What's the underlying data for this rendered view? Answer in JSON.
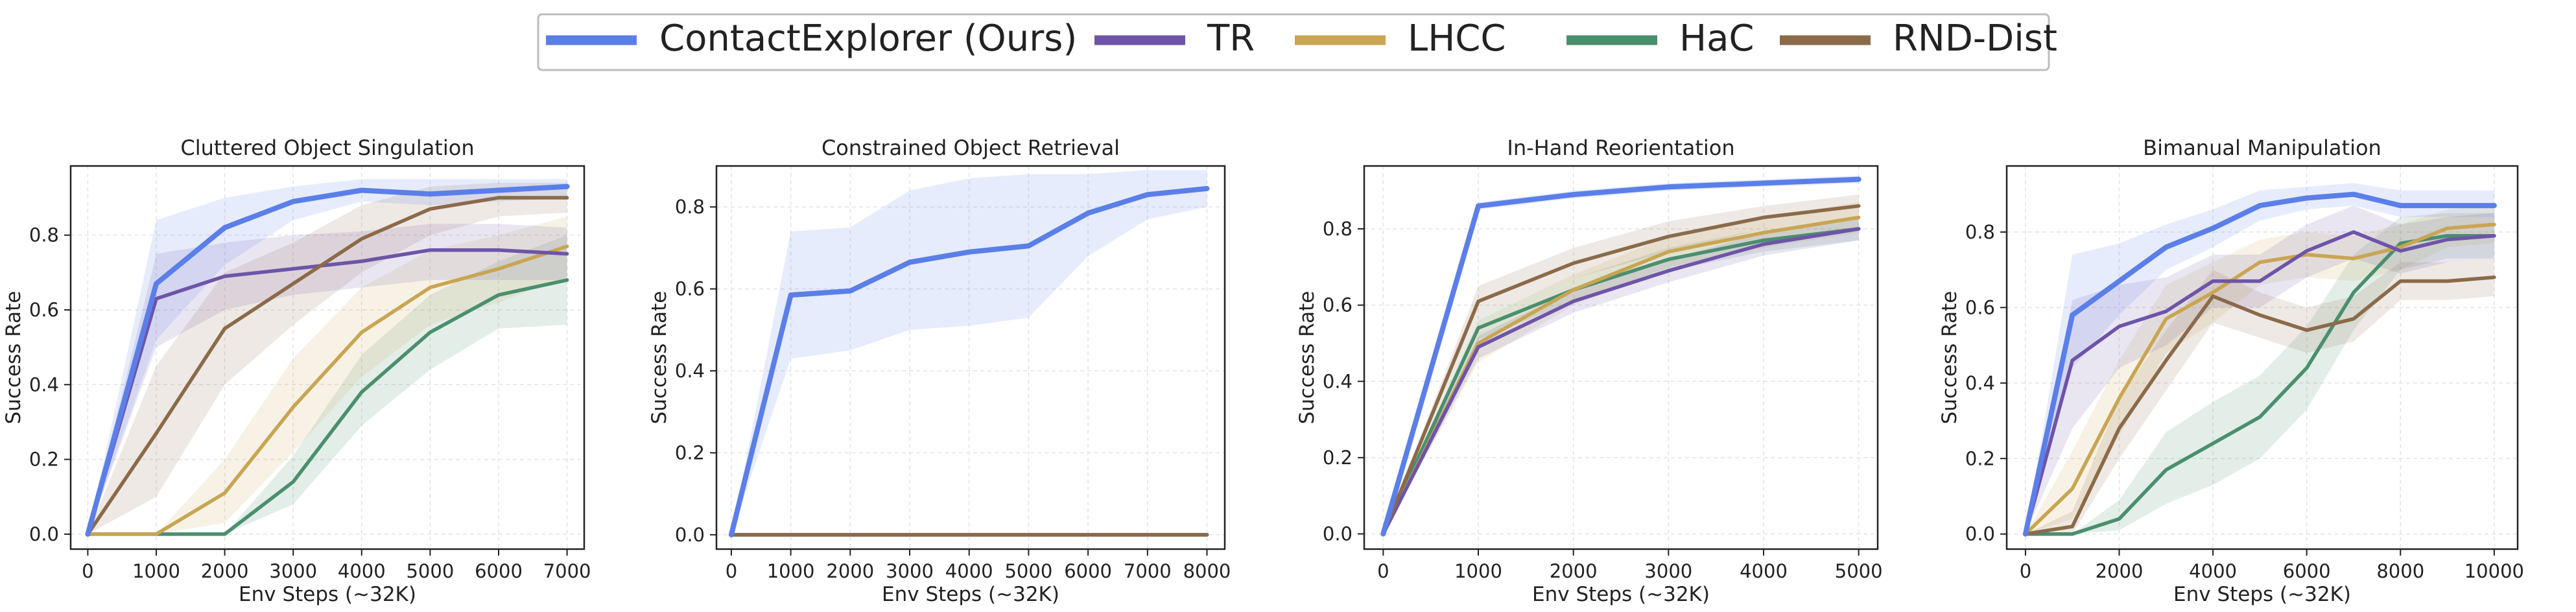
{
  "legend": {
    "items": [
      {
        "label": "ContactExplorer (Ours)",
        "color": "#5b7fe8"
      },
      {
        "label": "TR",
        "color": "#6e54a8"
      },
      {
        "label": "LHCC",
        "color": "#c9a552"
      },
      {
        "label": "HaC",
        "color": "#4a8f6e"
      },
      {
        "label": "RND-Dist",
        "color": "#8b6a4a"
      }
    ]
  },
  "chart_data": [
    {
      "type": "line",
      "title": "Cluttered Object Singulation",
      "xlabel": "Env Steps (~32K)",
      "ylabel": "Success Rate",
      "x": [
        0,
        1000,
        2000,
        3000,
        4000,
        5000,
        6000,
        7000
      ],
      "xlim": [
        -250,
        7250
      ],
      "ylim": [
        -0.04,
        0.985
      ],
      "xticks": [
        0,
        1000,
        2000,
        3000,
        4000,
        5000,
        6000,
        7000
      ],
      "yticks": [
        0.0,
        0.2,
        0.4,
        0.6,
        0.8
      ],
      "grid": true,
      "series": [
        {
          "name": "ContactExplorer (Ours)",
          "values": [
            0,
            0.67,
            0.82,
            0.89,
            0.92,
            0.91,
            0.92,
            0.93
          ],
          "lower": [
            0,
            0.52,
            0.72,
            0.84,
            0.89,
            0.88,
            0.89,
            0.9
          ],
          "upper": [
            0,
            0.84,
            0.9,
            0.93,
            0.95,
            0.95,
            0.95,
            0.95
          ]
        },
        {
          "name": "TR",
          "values": [
            0,
            0.63,
            0.69,
            0.71,
            0.73,
            0.76,
            0.76,
            0.75
          ],
          "lower": [
            0,
            0.5,
            0.6,
            0.64,
            0.66,
            0.68,
            0.68,
            0.68
          ],
          "upper": [
            0,
            0.75,
            0.78,
            0.8,
            0.81,
            0.83,
            0.83,
            0.82
          ]
        },
        {
          "name": "LHCC",
          "values": [
            0,
            0,
            0.11,
            0.34,
            0.54,
            0.66,
            0.71,
            0.77
          ],
          "lower": [
            0,
            0,
            0.03,
            0.22,
            0.42,
            0.56,
            0.62,
            0.69
          ],
          "upper": [
            0,
            0,
            0.2,
            0.47,
            0.66,
            0.76,
            0.8,
            0.85
          ]
        },
        {
          "name": "HaC",
          "values": [
            0,
            0,
            0,
            0.14,
            0.38,
            0.54,
            0.64,
            0.68
          ],
          "lower": [
            0,
            0,
            0,
            0.08,
            0.29,
            0.44,
            0.55,
            0.56
          ],
          "upper": [
            0,
            0,
            0,
            0.21,
            0.48,
            0.64,
            0.73,
            0.8
          ]
        },
        {
          "name": "RND-Dist",
          "values": [
            0,
            0.27,
            0.55,
            0.67,
            0.79,
            0.87,
            0.9,
            0.9
          ],
          "lower": [
            0,
            0.1,
            0.4,
            0.56,
            0.7,
            0.8,
            0.85,
            0.86
          ],
          "upper": [
            0,
            0.45,
            0.7,
            0.78,
            0.88,
            0.93,
            0.94,
            0.94
          ]
        }
      ]
    },
    {
      "type": "line",
      "title": "Constrained Object Retrieval",
      "xlabel": "Env Steps (~32K)",
      "ylabel": "Success Rate",
      "x": [
        0,
        1000,
        2000,
        3000,
        4000,
        5000,
        6000,
        7000,
        8000
      ],
      "xlim": [
        -250,
        8300
      ],
      "ylim": [
        -0.035,
        0.9
      ],
      "xticks": [
        0,
        1000,
        2000,
        3000,
        4000,
        5000,
        6000,
        7000,
        8000
      ],
      "yticks": [
        0.0,
        0.2,
        0.4,
        0.6,
        0.8
      ],
      "grid": true,
      "series": [
        {
          "name": "ContactExplorer (Ours)",
          "values": [
            0,
            0.585,
            0.595,
            0.665,
            0.69,
            0.705,
            0.785,
            0.83,
            0.845
          ],
          "lower": [
            0,
            0.43,
            0.45,
            0.5,
            0.51,
            0.53,
            0.68,
            0.77,
            0.8
          ],
          "upper": [
            0,
            0.74,
            0.75,
            0.84,
            0.87,
            0.88,
            0.88,
            0.89,
            0.89
          ]
        },
        {
          "name": "TR",
          "values": [
            0,
            0,
            0,
            0,
            0,
            0,
            0,
            0,
            0
          ]
        },
        {
          "name": "LHCC",
          "values": [
            0,
            0,
            0,
            0,
            0,
            0,
            0,
            0,
            0
          ]
        },
        {
          "name": "HaC",
          "values": [
            0,
            0,
            0,
            0,
            0,
            0,
            0,
            0,
            0
          ]
        },
        {
          "name": "RND-Dist",
          "values": [
            0,
            0,
            0,
            0,
            0,
            0,
            0,
            0,
            0
          ]
        }
      ]
    },
    {
      "type": "line",
      "title": "In-Hand Reorientation",
      "xlabel": "Env Steps (~32K)",
      "ylabel": "Success Rate",
      "x": [
        0,
        1000,
        2000,
        3000,
        4000,
        5000
      ],
      "xlim": [
        -200,
        5200
      ],
      "ylim": [
        -0.04,
        0.965
      ],
      "xticks": [
        0,
        1000,
        2000,
        3000,
        4000,
        5000
      ],
      "yticks": [
        0.0,
        0.2,
        0.4,
        0.6,
        0.8
      ],
      "grid": true,
      "series": [
        {
          "name": "ContactExplorer (Ours)",
          "values": [
            0,
            0.86,
            0.89,
            0.91,
            0.92,
            0.93
          ],
          "lower": [
            0,
            0.85,
            0.88,
            0.9,
            0.91,
            0.92
          ],
          "upper": [
            0,
            0.87,
            0.9,
            0.92,
            0.93,
            0.94
          ]
        },
        {
          "name": "TR",
          "values": [
            0,
            0.49,
            0.61,
            0.69,
            0.76,
            0.8
          ],
          "lower": [
            0,
            0.46,
            0.58,
            0.66,
            0.73,
            0.77
          ],
          "upper": [
            0,
            0.52,
            0.64,
            0.72,
            0.79,
            0.83
          ]
        },
        {
          "name": "LHCC",
          "values": [
            0,
            0.5,
            0.64,
            0.74,
            0.79,
            0.83
          ],
          "lower": [
            0,
            0.45,
            0.6,
            0.7,
            0.75,
            0.79
          ],
          "upper": [
            0,
            0.56,
            0.68,
            0.78,
            0.83,
            0.87
          ]
        },
        {
          "name": "HaC",
          "values": [
            0,
            0.54,
            0.64,
            0.72,
            0.77,
            0.8
          ],
          "lower": [
            0,
            0.51,
            0.61,
            0.69,
            0.74,
            0.77
          ],
          "upper": [
            0,
            0.57,
            0.67,
            0.75,
            0.8,
            0.83
          ]
        },
        {
          "name": "RND-Dist",
          "values": [
            0,
            0.61,
            0.71,
            0.78,
            0.83,
            0.86
          ],
          "lower": [
            0,
            0.57,
            0.67,
            0.74,
            0.8,
            0.83
          ],
          "upper": [
            0,
            0.65,
            0.75,
            0.82,
            0.86,
            0.89
          ]
        }
      ]
    },
    {
      "type": "line",
      "title": "Bimanual Manipulation",
      "xlabel": "Env Steps (~32K)",
      "ylabel": "Success Rate",
      "x": [
        0,
        1000,
        2000,
        3000,
        4000,
        5000,
        6000,
        7000,
        8000,
        9000,
        10000
      ],
      "xlim": [
        -400,
        10500
      ],
      "ylim": [
        -0.04,
        0.975
      ],
      "xticks": [
        0,
        2000,
        4000,
        6000,
        8000,
        10000
      ],
      "yticks": [
        0.0,
        0.2,
        0.4,
        0.6,
        0.8
      ],
      "grid": true,
      "series": [
        {
          "name": "ContactExplorer (Ours)",
          "values": [
            0,
            0.58,
            0.67,
            0.76,
            0.81,
            0.87,
            0.89,
            0.9,
            0.87,
            0.87,
            0.87
          ],
          "lower": [
            0,
            0.44,
            0.58,
            0.7,
            0.76,
            0.83,
            0.86,
            0.87,
            0.84,
            0.84,
            0.84
          ],
          "upper": [
            0,
            0.74,
            0.77,
            0.82,
            0.86,
            0.91,
            0.92,
            0.93,
            0.91,
            0.91,
            0.91
          ]
        },
        {
          "name": "TR",
          "values": [
            0,
            0.46,
            0.55,
            0.59,
            0.67,
            0.67,
            0.75,
            0.8,
            0.75,
            0.78,
            0.79
          ],
          "lower": [
            0,
            0.28,
            0.44,
            0.5,
            0.6,
            0.6,
            0.68,
            0.73,
            0.69,
            0.72,
            0.73
          ],
          "upper": [
            0,
            0.62,
            0.66,
            0.68,
            0.74,
            0.74,
            0.82,
            0.87,
            0.82,
            0.84,
            0.85
          ]
        },
        {
          "name": "LHCC",
          "values": [
            0,
            0.12,
            0.36,
            0.57,
            0.64,
            0.72,
            0.74,
            0.73,
            0.76,
            0.81,
            0.82
          ],
          "lower": [
            0,
            0.04,
            0.26,
            0.48,
            0.56,
            0.66,
            0.68,
            0.67,
            0.7,
            0.76,
            0.77
          ],
          "upper": [
            0,
            0.22,
            0.46,
            0.66,
            0.72,
            0.78,
            0.8,
            0.79,
            0.82,
            0.86,
            0.87
          ]
        },
        {
          "name": "HaC",
          "values": [
            0,
            0,
            0.04,
            0.17,
            0.24,
            0.31,
            0.44,
            0.64,
            0.77,
            0.79,
            0.79
          ],
          "lower": [
            0,
            0,
            0.01,
            0.08,
            0.13,
            0.2,
            0.33,
            0.54,
            0.7,
            0.73,
            0.73
          ],
          "upper": [
            0,
            0,
            0.09,
            0.27,
            0.35,
            0.42,
            0.55,
            0.74,
            0.84,
            0.85,
            0.85
          ]
        },
        {
          "name": "RND-Dist",
          "values": [
            0,
            0.02,
            0.28,
            0.46,
            0.63,
            0.58,
            0.54,
            0.57,
            0.67,
            0.67,
            0.68
          ],
          "lower": [
            0,
            0.0,
            0.2,
            0.38,
            0.56,
            0.52,
            0.48,
            0.51,
            0.62,
            0.62,
            0.63
          ],
          "upper": [
            0,
            0.06,
            0.36,
            0.54,
            0.7,
            0.64,
            0.6,
            0.63,
            0.72,
            0.72,
            0.73
          ]
        }
      ]
    }
  ]
}
